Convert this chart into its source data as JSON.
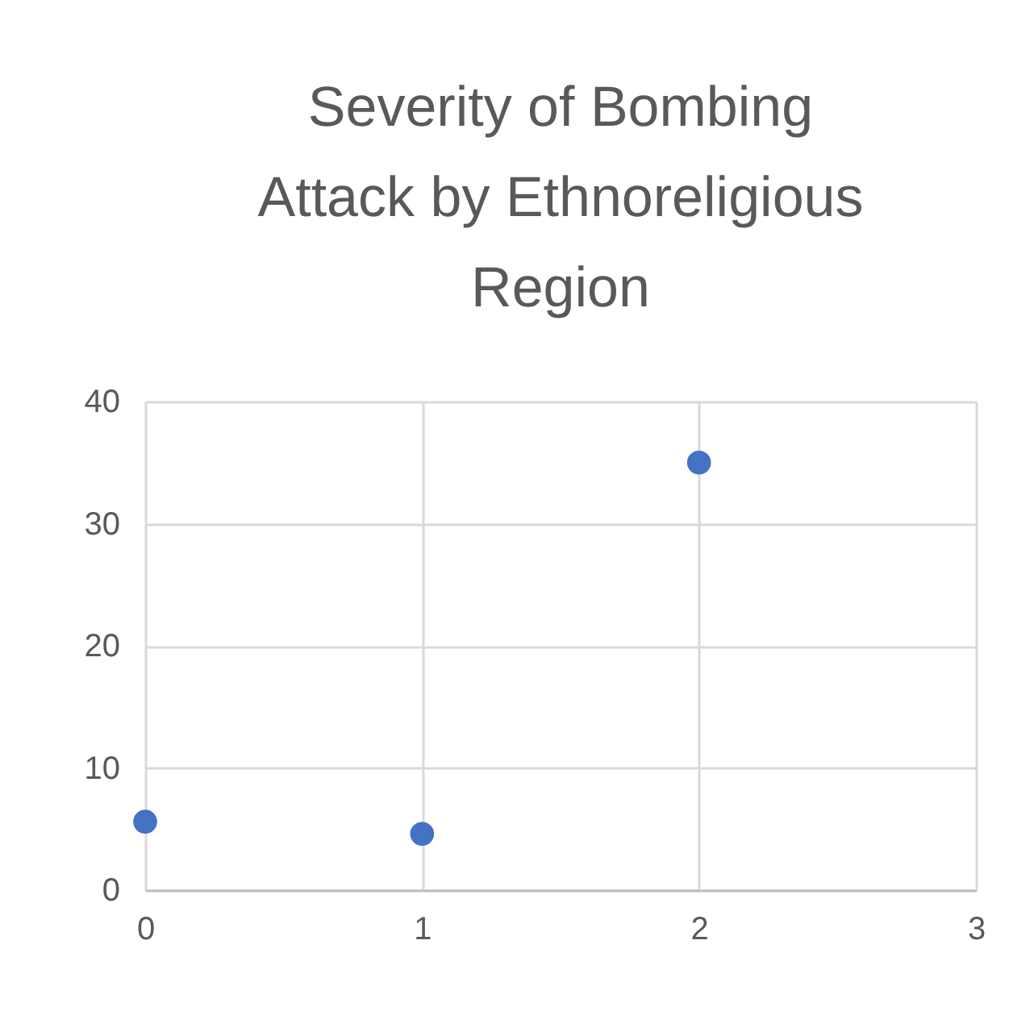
{
  "chart_data": {
    "type": "scatter",
    "title": "Severity of Bombing Attack by Ethnoreligious Region",
    "x": [
      0,
      1,
      2
    ],
    "series": [
      {
        "color": "#4472c4",
        "values": [
          5.6,
          4.6,
          35
        ]
      }
    ],
    "xlim": [
      0,
      3
    ],
    "xticks": [
      0,
      1,
      2,
      3
    ],
    "ylim": [
      0,
      40
    ],
    "yticks": [
      0,
      10,
      20,
      30,
      40
    ],
    "grid": true,
    "marker": "circle"
  }
}
